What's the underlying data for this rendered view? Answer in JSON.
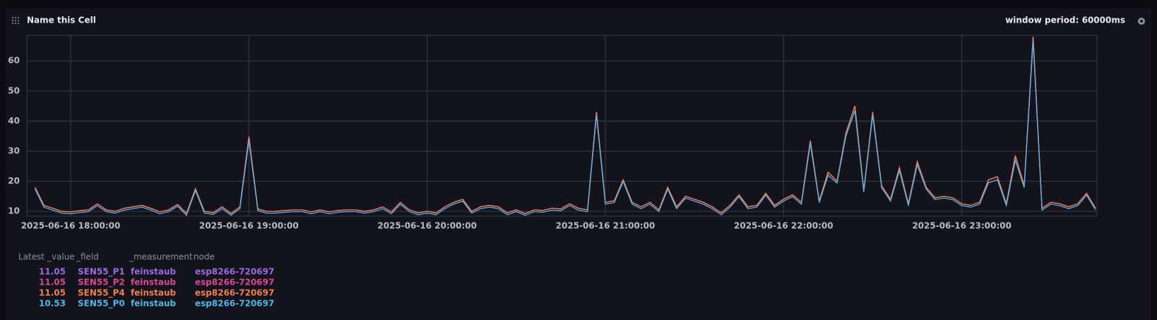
{
  "header": {
    "title": "Name this Cell",
    "window": "window period: 60000ms"
  },
  "chart_data": {
    "type": "line",
    "x": [
      "2025-06-16 17:48:00",
      "2025-06-16 17:51:00",
      "2025-06-16 17:54:00",
      "2025-06-16 17:57:00",
      "2025-06-16 18:00:00",
      "2025-06-16 18:03:00",
      "2025-06-16 18:06:00",
      "2025-06-16 18:09:00",
      "2025-06-16 18:12:00",
      "2025-06-16 18:15:00",
      "2025-06-16 18:18:00",
      "2025-06-16 18:21:00",
      "2025-06-16 18:24:00",
      "2025-06-16 18:27:00",
      "2025-06-16 18:30:00",
      "2025-06-16 18:33:00",
      "2025-06-16 18:36:00",
      "2025-06-16 18:39:00",
      "2025-06-16 18:42:00",
      "2025-06-16 18:45:00",
      "2025-06-16 18:48:00",
      "2025-06-16 18:51:00",
      "2025-06-16 18:54:00",
      "2025-06-16 18:57:00",
      "2025-06-16 19:00:00",
      "2025-06-16 19:03:00",
      "2025-06-16 19:06:00",
      "2025-06-16 19:09:00",
      "2025-06-16 19:12:00",
      "2025-06-16 19:15:00",
      "2025-06-16 19:18:00",
      "2025-06-16 19:21:00",
      "2025-06-16 19:24:00",
      "2025-06-16 19:27:00",
      "2025-06-16 19:30:00",
      "2025-06-16 19:33:00",
      "2025-06-16 19:36:00",
      "2025-06-16 19:39:00",
      "2025-06-16 19:42:00",
      "2025-06-16 19:45:00",
      "2025-06-16 19:48:00",
      "2025-06-16 19:51:00",
      "2025-06-16 19:54:00",
      "2025-06-16 19:57:00",
      "2025-06-16 20:00:00",
      "2025-06-16 20:03:00",
      "2025-06-16 20:06:00",
      "2025-06-16 20:09:00",
      "2025-06-16 20:12:00",
      "2025-06-16 20:15:00",
      "2025-06-16 20:18:00",
      "2025-06-16 20:21:00",
      "2025-06-16 20:24:00",
      "2025-06-16 20:27:00",
      "2025-06-16 20:30:00",
      "2025-06-16 20:33:00",
      "2025-06-16 20:36:00",
      "2025-06-16 20:39:00",
      "2025-06-16 20:42:00",
      "2025-06-16 20:45:00",
      "2025-06-16 20:48:00",
      "2025-06-16 20:51:00",
      "2025-06-16 20:54:00",
      "2025-06-16 20:57:00",
      "2025-06-16 21:00:00",
      "2025-06-16 21:03:00",
      "2025-06-16 21:06:00",
      "2025-06-16 21:09:00",
      "2025-06-16 21:12:00",
      "2025-06-16 21:15:00",
      "2025-06-16 21:18:00",
      "2025-06-16 21:21:00",
      "2025-06-16 21:24:00",
      "2025-06-16 21:27:00",
      "2025-06-16 21:30:00",
      "2025-06-16 21:33:00",
      "2025-06-16 21:36:00",
      "2025-06-16 21:39:00",
      "2025-06-16 21:42:00",
      "2025-06-16 21:45:00",
      "2025-06-16 21:48:00",
      "2025-06-16 21:51:00",
      "2025-06-16 21:54:00",
      "2025-06-16 21:57:00",
      "2025-06-16 22:00:00",
      "2025-06-16 22:03:00",
      "2025-06-16 22:06:00",
      "2025-06-16 22:09:00",
      "2025-06-16 22:12:00",
      "2025-06-16 22:15:00",
      "2025-06-16 22:18:00",
      "2025-06-16 22:21:00",
      "2025-06-16 22:24:00",
      "2025-06-16 22:27:00",
      "2025-06-16 22:30:00",
      "2025-06-16 22:33:00",
      "2025-06-16 22:36:00",
      "2025-06-16 22:39:00",
      "2025-06-16 22:42:00",
      "2025-06-16 22:45:00",
      "2025-06-16 22:48:00",
      "2025-06-16 22:51:00",
      "2025-06-16 22:54:00",
      "2025-06-16 22:57:00",
      "2025-06-16 23:00:00",
      "2025-06-16 23:03:00",
      "2025-06-16 23:06:00",
      "2025-06-16 23:09:00",
      "2025-06-16 23:12:00",
      "2025-06-16 23:15:00",
      "2025-06-16 23:18:00",
      "2025-06-16 23:21:00",
      "2025-06-16 23:24:00",
      "2025-06-16 23:27:00",
      "2025-06-16 23:30:00",
      "2025-06-16 23:33:00",
      "2025-06-16 23:36:00",
      "2025-06-16 23:39:00",
      "2025-06-16 23:42:00",
      "2025-06-16 23:45:00"
    ],
    "series": [
      {
        "name": "SEN55_P1",
        "measurement": "feinstaub",
        "node": "esp8266-720697",
        "color": "#9b6ae0",
        "values": [
          18,
          12,
          11,
          10,
          9.8,
          10.2,
          10.5,
          12.5,
          10.5,
          10,
          11,
          11.5,
          12,
          11,
          9.8,
          10.5,
          12.3,
          9.3,
          17.5,
          10,
          9.6,
          11.5,
          9.3,
          11.5,
          34.8,
          10.8,
          10,
          10,
          10.3,
          10.5,
          10.5,
          9.8,
          10.5,
          9.8,
          10.3,
          10.5,
          10.5,
          10,
          10.5,
          11.5,
          9.8,
          13,
          10.5,
          9.5,
          10,
          9.5,
          11.5,
          13,
          14,
          10,
          11.5,
          12,
          11.5,
          9.5,
          10.5,
          9.3,
          10.5,
          10.3,
          11,
          10.8,
          12.5,
          11,
          10.5,
          43,
          13,
          13.5,
          20.5,
          13,
          11.5,
          13,
          10.5,
          18,
          11.5,
          15,
          14,
          13,
          11.5,
          9.5,
          12,
          15.5,
          11.5,
          12,
          16,
          12,
          14,
          15.5,
          13,
          33.5,
          13.5,
          23,
          20,
          36,
          45,
          17,
          43,
          18.5,
          14,
          24.5,
          12.5,
          26.5,
          18,
          14.5,
          15,
          14.5,
          12.5,
          12,
          13,
          20.5,
          21.5,
          12.5,
          28.5,
          18.5,
          68,
          11,
          13,
          12.5,
          11.5,
          12.5,
          16,
          11.05
        ]
      },
      {
        "name": "SEN55_P2",
        "measurement": "feinstaub",
        "node": "esp8266-720697",
        "color": "#d9478f",
        "values": [
          18,
          12,
          11,
          10,
          9.8,
          10.2,
          10.5,
          12.5,
          10.5,
          10,
          11,
          11.5,
          12,
          11,
          9.8,
          10.5,
          12.3,
          9.3,
          17.5,
          10,
          9.6,
          11.5,
          9.3,
          11.5,
          34.8,
          10.8,
          10,
          10,
          10.3,
          10.5,
          10.5,
          9.8,
          10.5,
          9.8,
          10.3,
          10.5,
          10.5,
          10,
          10.5,
          11.5,
          9.8,
          13,
          10.5,
          9.5,
          10,
          9.5,
          11.5,
          13,
          14,
          10,
          11.5,
          12,
          11.5,
          9.5,
          10.5,
          9.3,
          10.5,
          10.3,
          11,
          10.8,
          12.5,
          11,
          10.5,
          43,
          13,
          13.5,
          20.5,
          13,
          11.5,
          13,
          10.5,
          18,
          11.5,
          15,
          14,
          13,
          11.5,
          9.5,
          12,
          15.5,
          11.5,
          12,
          16,
          12,
          14,
          15.5,
          13,
          33.5,
          13.5,
          23,
          20,
          36,
          45,
          17,
          43,
          18.5,
          14,
          24.5,
          12.5,
          26.5,
          18,
          14.5,
          15,
          14.5,
          12.5,
          12,
          13,
          20.5,
          21.5,
          12.5,
          28.5,
          18.5,
          68,
          11,
          13,
          12.5,
          11.5,
          12.5,
          16,
          11.05
        ]
      },
      {
        "name": "SEN55_P4",
        "measurement": "feinstaub",
        "node": "esp8266-720697",
        "color": "#f47f4a",
        "values": [
          18,
          12,
          11,
          10,
          9.8,
          10.2,
          10.5,
          12.5,
          10.5,
          10,
          11,
          11.5,
          12,
          11,
          9.8,
          10.5,
          12.3,
          9.3,
          17.5,
          10,
          9.6,
          11.5,
          9.3,
          11.5,
          34.8,
          10.8,
          10,
          10,
          10.3,
          10.5,
          10.5,
          9.8,
          10.5,
          9.8,
          10.3,
          10.5,
          10.5,
          10,
          10.5,
          11.5,
          9.8,
          13,
          10.5,
          9.5,
          10,
          9.5,
          11.5,
          13,
          14,
          10,
          11.5,
          12,
          11.5,
          9.5,
          10.5,
          9.3,
          10.5,
          10.3,
          11,
          10.8,
          12.5,
          11,
          10.5,
          43,
          13,
          13.5,
          20.5,
          13,
          11.5,
          13,
          10.5,
          18,
          11.5,
          15,
          14,
          13,
          11.5,
          9.5,
          12,
          15.5,
          11.5,
          12,
          16,
          12,
          14,
          15.5,
          13,
          33.5,
          13.5,
          23,
          20,
          36,
          45,
          17,
          43,
          18.5,
          14,
          24.5,
          12.5,
          26.5,
          18,
          14.5,
          15,
          14.5,
          12.5,
          12,
          13,
          20.5,
          21.5,
          12.5,
          28.5,
          18.5,
          68,
          11,
          13,
          12.5,
          11.5,
          12.5,
          16,
          11.05
        ]
      },
      {
        "name": "SEN55_P0",
        "measurement": "feinstaub",
        "node": "esp8266-720697",
        "color": "#4db6ea",
        "values": [
          17.4,
          11.4,
          10.4,
          9.4,
          9.2,
          9.6,
          9.9,
          11.9,
          9.9,
          9.4,
          10.4,
          10.9,
          11.4,
          10.4,
          9.2,
          9.9,
          11.7,
          8.7,
          16.9,
          9.4,
          9,
          10.9,
          8.7,
          10.9,
          33.5,
          10.2,
          9.4,
          9.4,
          9.7,
          9.9,
          9.9,
          9.2,
          9.9,
          9.2,
          9.7,
          9.9,
          9.9,
          9.4,
          9.9,
          10.9,
          9.2,
          12.4,
          9.9,
          8.9,
          9.4,
          8.9,
          10.9,
          12.4,
          13.4,
          9.4,
          10.9,
          11.4,
          10.9,
          8.9,
          9.9,
          8.7,
          9.9,
          9.7,
          10.4,
          10.2,
          11.9,
          10.4,
          9.9,
          42,
          12.4,
          12.9,
          19.9,
          12.4,
          10.9,
          12.4,
          9.9,
          17.4,
          10.9,
          14.4,
          13.4,
          12.4,
          10.9,
          8.9,
          11.4,
          14.9,
          10.9,
          11.4,
          15.4,
          11.4,
          13.4,
          14.9,
          12.4,
          32.5,
          12.9,
          22,
          19.4,
          35,
          43.5,
          16.4,
          42,
          17.9,
          13.4,
          23.5,
          11.9,
          25.5,
          17.4,
          13.9,
          14.4,
          13.9,
          11.9,
          11.4,
          12.4,
          19.5,
          20.5,
          11.9,
          27,
          17.9,
          66.5,
          10.4,
          12.4,
          11.9,
          10.9,
          11.9,
          15.4,
          10.53
        ]
      }
    ],
    "xlim": [
      "2025-06-16 17:45:15",
      "2025-06-16 23:45:30"
    ],
    "xticks": [
      "2025-06-16 18:00:00",
      "2025-06-16 19:00:00",
      "2025-06-16 20:00:00",
      "2025-06-16 21:00:00",
      "2025-06-16 22:00:00",
      "2025-06-16 23:00:00"
    ],
    "ylim": [
      8.4,
      68.5
    ],
    "yticks": [
      10,
      20,
      30,
      40,
      50,
      60
    ],
    "grid": true
  },
  "legend": {
    "headers": [
      "Latest _value",
      "_field",
      "_measurement",
      "node"
    ]
  }
}
